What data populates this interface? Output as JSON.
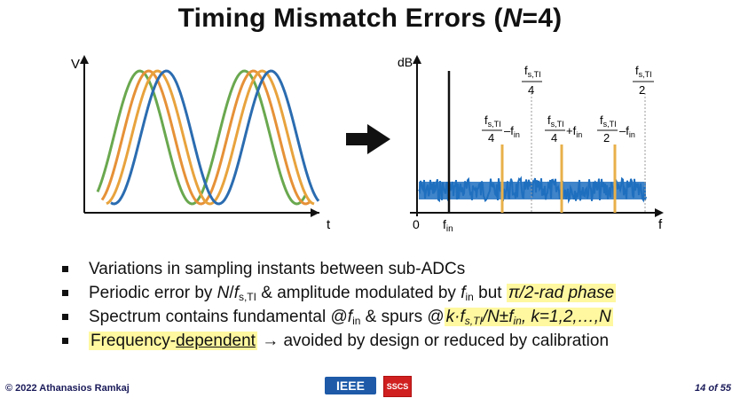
{
  "slide": {
    "title_prefix": "Timing Mismatch Errors (",
    "title_var": "N",
    "title_suffix": "=4)",
    "page": "14 of 55",
    "copyright": "© 2022 Athanasios Ramkaj",
    "logos": {
      "ieee": "IEEE",
      "sscs": "SSCS"
    }
  },
  "left_plot": {
    "ylabel": "V",
    "xlabel": "t",
    "wave_colors": [
      "#6aa84f",
      "#e69138",
      "#e8a33d",
      "#2b6cb0"
    ]
  },
  "arrow": {
    "icon": "right-arrow-icon"
  },
  "right_plot": {
    "ylabel": "dB",
    "xlabel": "f",
    "origin": "0",
    "fin_label": "f",
    "fin_sub": "in",
    "annotations": {
      "fs4_num": "f",
      "fs4_num_sub": "s,TI",
      "fs4_den": "4",
      "fs2_num": "f",
      "fs2_num_sub": "s,TI",
      "fs2_den": "2",
      "spur1_op": "–f",
      "spur1_sub": "in",
      "spur2_op": "+f",
      "spur2_sub": "in",
      "spur3_op": "–f",
      "spur3_sub": "in",
      "spur3_den": "2"
    },
    "colors": {
      "noise": "#1f6fbf",
      "spur": "#e8b04a",
      "fundamental": "#111111"
    }
  },
  "bullets": [
    {
      "text": "Variations in sampling instants between sub-ADCs"
    },
    {
      "a": "Periodic error by ",
      "b": "N",
      "c": "/",
      "d": "f",
      "d_sub": "s,TI",
      "e": " & amplitude modulated by ",
      "f": "f",
      "f_sub": "in",
      "g": " but ",
      "h": "π/2-rad phase"
    },
    {
      "a": "Spectrum contains fundamental @",
      "b": "f",
      "b_sub": "in",
      "c": " & spurs @",
      "d": "k·f",
      "d_sub": "s,TI",
      "e": "/N±f",
      "e_sub": "in",
      "f": ", k=1,2,…,N"
    },
    {
      "a": "Frequency-",
      "b": "dependent",
      "c": " → avoided by design or reduced by calibration"
    }
  ]
}
